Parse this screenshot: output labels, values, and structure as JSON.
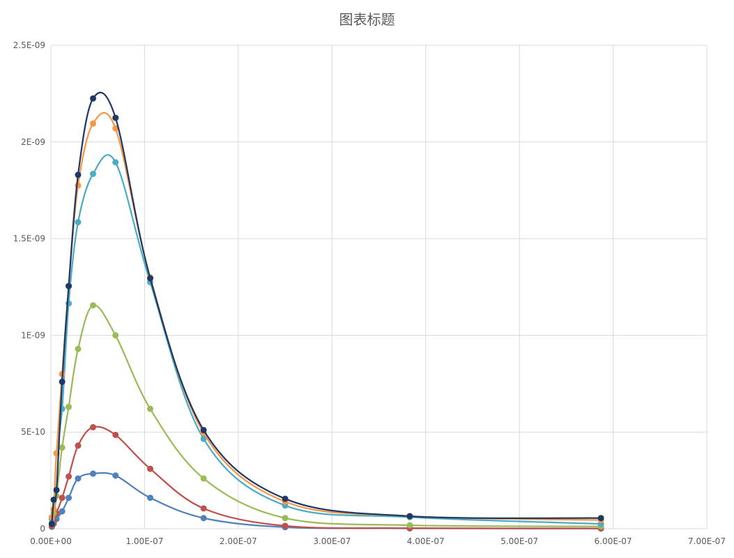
{
  "chart_data": {
    "type": "scatter",
    "title": "图表标题",
    "xlabel": "",
    "ylabel": "",
    "xlim": [
      0,
      7e-07
    ],
    "ylim": [
      0,
      2.5e-09
    ],
    "grid": true,
    "smooth": true,
    "x_ticks": [
      {
        "value": 0,
        "label": "0.00E+00"
      },
      {
        "value": 1e-07,
        "label": "1.00E-07"
      },
      {
        "value": 2e-07,
        "label": "2.00E-07"
      },
      {
        "value": 3e-07,
        "label": "3.00E-07"
      },
      {
        "value": 4e-07,
        "label": "4.00E-07"
      },
      {
        "value": 5e-07,
        "label": "5.00E-07"
      },
      {
        "value": 6e-07,
        "label": "6.00E-07"
      },
      {
        "value": 7e-07,
        "label": "7.00E-07"
      }
    ],
    "y_ticks": [
      {
        "value": 0,
        "label": "0"
      },
      {
        "value": 5e-10,
        "label": "5E-10"
      },
      {
        "value": 1e-09,
        "label": "1E-09"
      },
      {
        "value": 1.5e-09,
        "label": "1.5E-09"
      },
      {
        "value": 2e-09,
        "label": "2E-09"
      },
      {
        "value": 2.5e-09,
        "label": "2.5E-09"
      }
    ],
    "x": [
      1e-09,
      3e-09,
      6e-09,
      1.2e-08,
      1.9e-08,
      2.9e-08,
      4.5e-08,
      6.9e-08,
      1.06e-07,
      1.63e-07,
      2.5e-07,
      3.83e-07,
      5.87e-07
    ],
    "series": [
      {
        "color": "#4f81bd",
        "values": [
          1e-11,
          2.5e-11,
          5e-11,
          9e-11,
          1.6e-10,
          2.6e-10,
          2.85e-10,
          2.75e-10,
          1.6e-10,
          5.5e-11,
          8e-12,
          2e-12,
          1e-12
        ]
      },
      {
        "color": "#c0504d",
        "values": [
          1.5e-11,
          3.5e-11,
          8e-11,
          1.6e-10,
          2.7e-10,
          4.3e-10,
          5.25e-10,
          4.85e-10,
          3.1e-10,
          1.05e-10,
          1.5e-11,
          3e-12,
          2e-12
        ]
      },
      {
        "color": "#9bbb59",
        "values": [
          3e-11,
          8e-11,
          1.7e-10,
          4.2e-10,
          6.3e-10,
          9.3e-10,
          1.155e-09,
          1e-09,
          6.2e-10,
          2.6e-10,
          5.5e-11,
          1.8e-11,
          1.2e-11
        ]
      },
      {
        "color": "#4bacc6",
        "values": [
          5e-11,
          1e-10,
          3.9e-10,
          6.2e-10,
          1.165e-09,
          1.585e-09,
          1.835e-09,
          1.895e-09,
          1.275e-09,
          4.65e-10,
          1.2e-10,
          6e-11,
          2.5e-11
        ]
      },
      {
        "color": "#f79646",
        "values": [
          6e-11,
          1e-10,
          3.9e-10,
          8e-10,
          1.255e-09,
          1.775e-09,
          2.095e-09,
          2.07e-09,
          1.3e-09,
          4.95e-10,
          1.4e-10,
          6.5e-11,
          4.5e-11
        ]
      },
      {
        "color": "#1f3864",
        "values": [
          2.5e-11,
          1.5e-10,
          2e-10,
          7.6e-10,
          1.255e-09,
          1.83e-09,
          2.225e-09,
          2.125e-09,
          1.295e-09,
          5.1e-10,
          1.55e-10,
          6.5e-11,
          5.5e-11
        ]
      }
    ]
  }
}
